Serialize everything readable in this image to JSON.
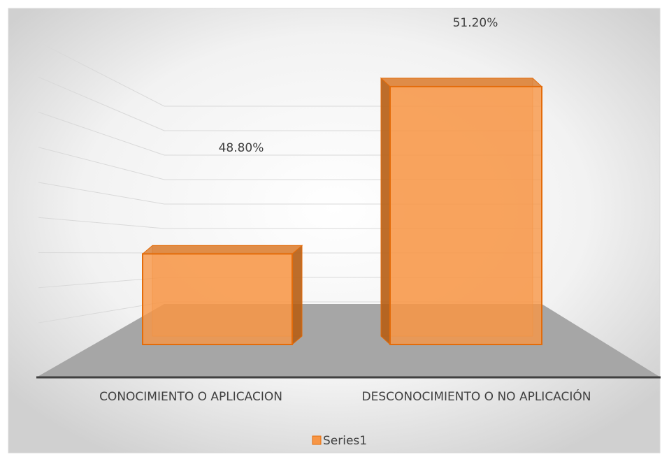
{
  "chart_data": {
    "type": "bar3d",
    "categories": [
      "CONOCIMIENTO O APLICACION",
      "DESCONOCIMIENTO O NO APLICACIÓN"
    ],
    "series": [
      {
        "name": "Series1",
        "color": "#f79646",
        "values": [
          48.8,
          51.2
        ],
        "value_labels": [
          "48.80%",
          "51.20%"
        ]
      }
    ],
    "ylim": [
      47.5,
      51.5
    ],
    "yticks": [
      47.5,
      48,
      48.5,
      49,
      49.5,
      50,
      50.5,
      51,
      51.5
    ],
    "grid": true,
    "legend": "bottom"
  }
}
